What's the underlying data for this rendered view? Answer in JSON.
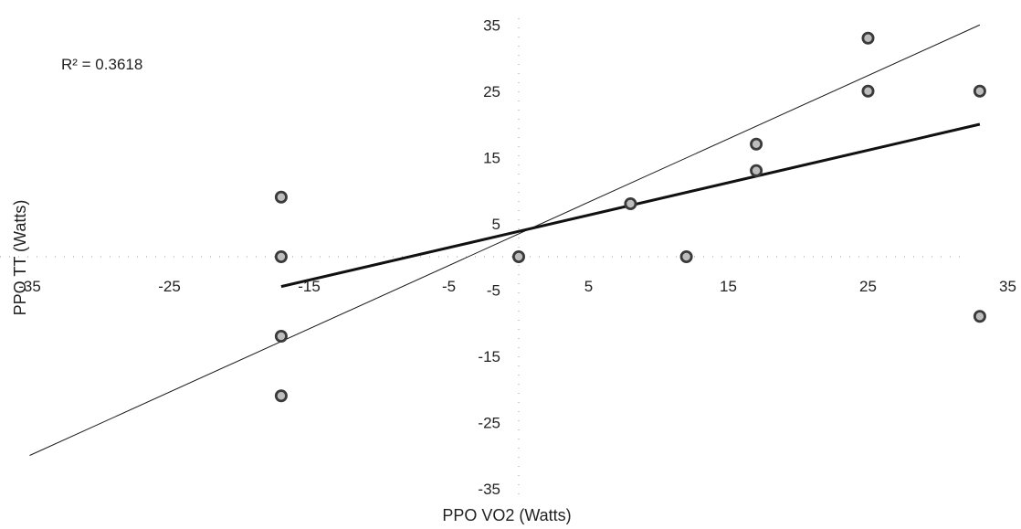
{
  "chart_data": {
    "type": "scatter",
    "xlabel": "PPO VO2 (Watts)",
    "ylabel": "PPO TT (Watts)",
    "xlim": [
      -35,
      35
    ],
    "ylim": [
      -35,
      35
    ],
    "x_ticks": [
      -35,
      -25,
      -15,
      -5,
      5,
      15,
      25,
      35
    ],
    "y_ticks": [
      35,
      25,
      15,
      5,
      -5,
      -15,
      -25,
      -35
    ],
    "x_tick_labels": [
      "-35",
      "-25",
      "-15",
      "-5",
      "5",
      "15",
      "25",
      "35"
    ],
    "y_tick_labels": [
      "35",
      "25",
      "15",
      "5",
      "-5",
      "-15",
      "-25",
      "-35"
    ],
    "annotation": "R² = 0.3618",
    "grid": false,
    "points": [
      {
        "x": -17,
        "y": 9
      },
      {
        "x": -17,
        "y": 0
      },
      {
        "x": -17,
        "y": -12
      },
      {
        "x": -17,
        "y": -21
      },
      {
        "x": 0,
        "y": 0
      },
      {
        "x": 8,
        "y": 8
      },
      {
        "x": 12,
        "y": 0
      },
      {
        "x": 17,
        "y": 17
      },
      {
        "x": 17,
        "y": 13
      },
      {
        "x": 25,
        "y": 33
      },
      {
        "x": 25,
        "y": 25
      },
      {
        "x": 33,
        "y": 25
      },
      {
        "x": 33,
        "y": -9
      }
    ],
    "lines": [
      {
        "kind": "identity",
        "x": [
          -35,
          33
        ],
        "y": [
          -30,
          35
        ]
      },
      {
        "kind": "trend",
        "x": [
          -17,
          33
        ],
        "y": [
          -4.5,
          20
        ]
      }
    ]
  }
}
